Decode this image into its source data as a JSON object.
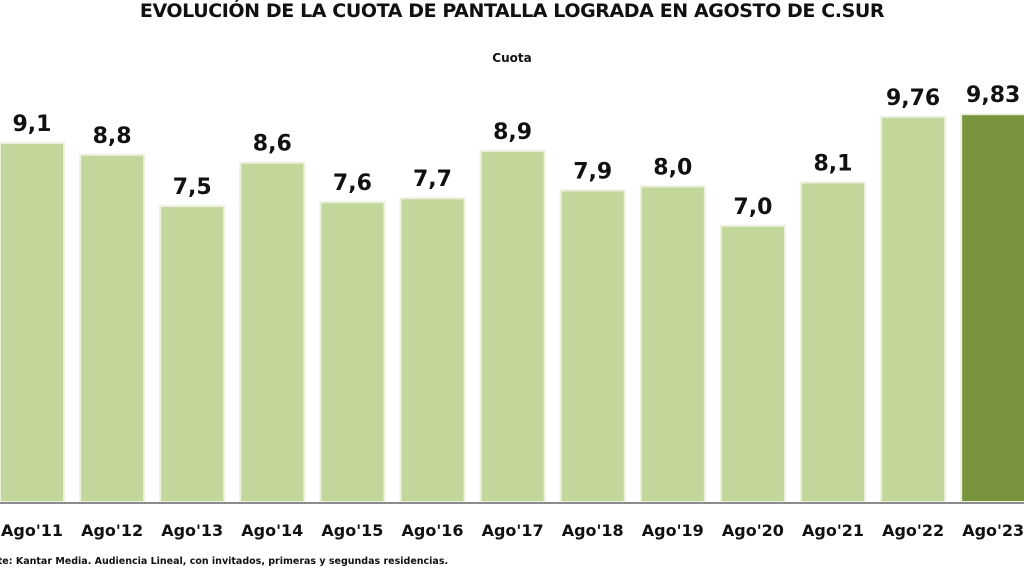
{
  "chart_data": {
    "type": "bar",
    "title": "EVOLUCIÓN DE LA CUOTA DE PANTALLA LOGRADA EN AGOSTO DE C.SUR",
    "subtitle": "Cuota",
    "xlabel": "",
    "ylabel": "",
    "categories": [
      "Ago'11",
      "Ago'12",
      "Ago'13",
      "Ago'14",
      "Ago'15",
      "Ago'16",
      "Ago'17",
      "Ago'18",
      "Ago'19",
      "Ago'20",
      "Ago'21",
      "Ago'22",
      "Ago'23"
    ],
    "values": [
      9.1,
      8.8,
      7.5,
      8.6,
      7.6,
      7.7,
      8.9,
      7.9,
      8.0,
      7.0,
      8.1,
      9.76,
      9.83
    ],
    "value_labels": [
      "9,1",
      "8,8",
      "7,5",
      "8,6",
      "7,6",
      "7,7",
      "8,9",
      "7,9",
      "8,0",
      "7,0",
      "8,1",
      "9,76",
      "9,83"
    ],
    "ylim": [
      0,
      10.2
    ],
    "grid": false,
    "legend": "none",
    "colors": {
      "default": "#c4d79b",
      "highlight": "#77933c",
      "border": "#ebf1de",
      "axis": "#8c8c8c"
    },
    "highlight_index": 12
  },
  "footer": {
    "source": "nte: Kantar Media. Audiencia Lineal, con invitados, primeras y segundas residencias."
  }
}
